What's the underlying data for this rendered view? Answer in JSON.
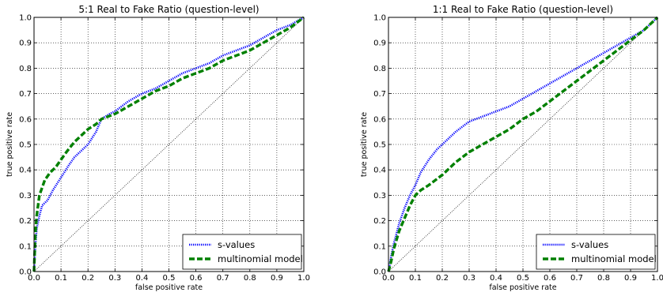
{
  "chart_data": [
    {
      "type": "line",
      "title": "5:1 Real to Fake Ratio (question-level)",
      "xlabel": "false positive rate",
      "ylabel": "true positive rate",
      "xlim": [
        0,
        1
      ],
      "ylim": [
        0,
        1
      ],
      "xticks": [
        "0.0",
        "0.1",
        "0.2",
        "0.3",
        "0.4",
        "0.5",
        "0.6",
        "0.7",
        "0.8",
        "0.9",
        "1.0"
      ],
      "yticks": [
        "0.0",
        "0.1",
        "0.2",
        "0.3",
        "0.4",
        "0.5",
        "0.6",
        "0.7",
        "0.8",
        "0.9",
        "1.0"
      ],
      "grid": true,
      "legend_position": "bottom-right",
      "series": [
        {
          "name": "s-values",
          "color": "#0000ff",
          "style": "dotted",
          "x": [
            0,
            0.005,
            0.01,
            0.02,
            0.03,
            0.05,
            0.07,
            0.1,
            0.13,
            0.15,
            0.18,
            0.2,
            0.23,
            0.25,
            0.28,
            0.3,
            0.35,
            0.4,
            0.45,
            0.5,
            0.55,
            0.6,
            0.65,
            0.7,
            0.75,
            0.8,
            0.85,
            0.9,
            0.95,
            1.0
          ],
          "y": [
            0,
            0.1,
            0.17,
            0.22,
            0.26,
            0.28,
            0.32,
            0.37,
            0.42,
            0.45,
            0.48,
            0.5,
            0.55,
            0.6,
            0.62,
            0.63,
            0.67,
            0.7,
            0.72,
            0.75,
            0.78,
            0.8,
            0.82,
            0.85,
            0.87,
            0.89,
            0.92,
            0.95,
            0.97,
            1.0
          ]
        },
        {
          "name": "multinomial model",
          "color": "#008000",
          "style": "dashed",
          "x": [
            0,
            0.005,
            0.01,
            0.02,
            0.04,
            0.06,
            0.08,
            0.1,
            0.12,
            0.15,
            0.18,
            0.2,
            0.23,
            0.25,
            0.3,
            0.35,
            0.4,
            0.45,
            0.5,
            0.55,
            0.6,
            0.65,
            0.7,
            0.75,
            0.8,
            0.85,
            0.9,
            0.95,
            1.0
          ],
          "y": [
            0,
            0.15,
            0.22,
            0.3,
            0.36,
            0.39,
            0.41,
            0.44,
            0.47,
            0.51,
            0.54,
            0.56,
            0.58,
            0.6,
            0.62,
            0.65,
            0.68,
            0.71,
            0.73,
            0.76,
            0.78,
            0.8,
            0.83,
            0.85,
            0.87,
            0.9,
            0.93,
            0.96,
            1.0
          ]
        }
      ]
    },
    {
      "type": "line",
      "title": "1:1 Real to Fake Ratio (question-level)",
      "xlabel": "false positive rate",
      "ylabel": "true positive rate",
      "xlim": [
        0,
        1
      ],
      "ylim": [
        0,
        1
      ],
      "xticks": [
        "0.0",
        "0.1",
        "0.2",
        "0.3",
        "0.4",
        "0.5",
        "0.6",
        "0.7",
        "0.8",
        "0.9",
        "1.0"
      ],
      "yticks": [
        "0.0",
        "0.1",
        "0.2",
        "0.3",
        "0.4",
        "0.5",
        "0.6",
        "0.7",
        "0.8",
        "0.9",
        "1.0"
      ],
      "grid": true,
      "legend_position": "bottom-right",
      "series": [
        {
          "name": "s-values",
          "color": "#0000ff",
          "style": "dotted",
          "x": [
            0,
            0.01,
            0.02,
            0.04,
            0.06,
            0.08,
            0.1,
            0.12,
            0.15,
            0.18,
            0.2,
            0.25,
            0.3,
            0.35,
            0.4,
            0.45,
            0.5,
            0.55,
            0.6,
            0.65,
            0.7,
            0.75,
            0.8,
            0.85,
            0.9,
            0.95,
            1.0
          ],
          "y": [
            0,
            0.06,
            0.11,
            0.19,
            0.25,
            0.3,
            0.34,
            0.39,
            0.44,
            0.48,
            0.5,
            0.55,
            0.59,
            0.61,
            0.63,
            0.65,
            0.68,
            0.71,
            0.74,
            0.77,
            0.8,
            0.83,
            0.86,
            0.89,
            0.92,
            0.95,
            1.0
          ]
        },
        {
          "name": "multinomial model",
          "color": "#008000",
          "style": "dashed",
          "x": [
            0,
            0.01,
            0.02,
            0.04,
            0.06,
            0.08,
            0.1,
            0.12,
            0.15,
            0.2,
            0.25,
            0.3,
            0.35,
            0.4,
            0.45,
            0.5,
            0.55,
            0.6,
            0.65,
            0.7,
            0.75,
            0.8,
            0.85,
            0.9,
            0.95,
            1.0
          ],
          "y": [
            0,
            0.04,
            0.09,
            0.16,
            0.21,
            0.26,
            0.3,
            0.32,
            0.34,
            0.38,
            0.43,
            0.47,
            0.5,
            0.53,
            0.56,
            0.6,
            0.63,
            0.67,
            0.71,
            0.75,
            0.79,
            0.83,
            0.87,
            0.91,
            0.95,
            1.0
          ]
        }
      ]
    }
  ]
}
